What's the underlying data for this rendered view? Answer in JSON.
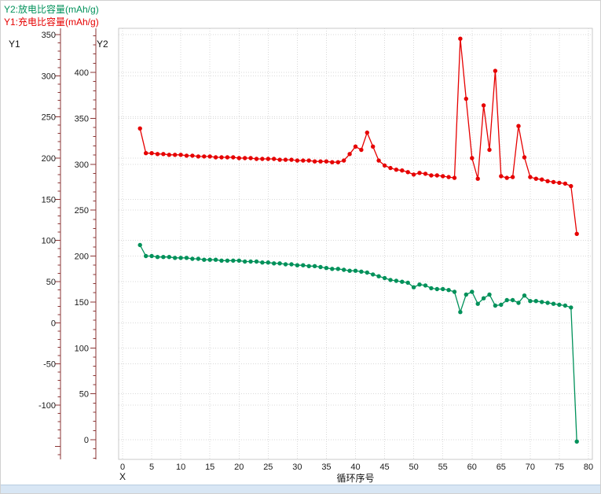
{
  "legend": {
    "y2_label": "Y2:放电比容量(mAh/g)",
    "y1_label": "Y1:充电比容量(mAh/g)"
  },
  "axes": {
    "y1_title": "Y1",
    "y2_title": "Y2",
    "x_title": "X",
    "x_axis_label": "循环序号"
  },
  "colors": {
    "charge": "#e60000",
    "discharge": "#00915a",
    "axis": "#8b3535",
    "grid": "#d9d9d9",
    "tick_text": "#1a1a1a",
    "plot_border": "#c9c9c9",
    "scrollbar": "#d8e6f4"
  },
  "chart_data": {
    "type": "line",
    "x_label": "循环序号",
    "y1_label": "充电比容量(mAh/g)",
    "y2_label": "放电比容量(mAh/g)",
    "x_ticks": [
      0,
      5,
      10,
      15,
      20,
      25,
      30,
      35,
      40,
      45,
      50,
      55,
      60,
      65,
      70,
      75,
      80
    ],
    "y1_ticks": [
      350,
      300,
      250,
      200,
      150,
      100,
      50,
      0,
      -50,
      -100
    ],
    "y2_ticks": [
      400,
      350,
      300,
      250,
      200,
      150,
      100,
      50,
      0
    ],
    "x": [
      3,
      4,
      5,
      6,
      7,
      8,
      9,
      10,
      11,
      12,
      13,
      14,
      15,
      16,
      17,
      18,
      19,
      20,
      21,
      22,
      23,
      24,
      25,
      26,
      27,
      28,
      29,
      30,
      31,
      32,
      33,
      34,
      35,
      36,
      37,
      38,
      39,
      40,
      41,
      42,
      43,
      44,
      45,
      46,
      47,
      48,
      49,
      50,
      51,
      52,
      53,
      54,
      55,
      56,
      57,
      58,
      59,
      60,
      61,
      62,
      63,
      64,
      65,
      66,
      67,
      68,
      69,
      70,
      71,
      72,
      73,
      74,
      75,
      76,
      77,
      78
    ],
    "series": [
      {
        "name": "充电比容量(mAh/g)",
        "axis": "Y1",
        "color": "#e60000",
        "values": [
          236,
          206,
          206,
          205,
          205,
          204,
          204,
          204,
          203,
          203,
          202,
          202,
          202,
          201,
          201,
          201,
          201,
          200,
          200,
          200,
          199,
          199,
          199,
          199,
          198,
          198,
          198,
          197,
          197,
          197,
          196,
          196,
          196,
          195,
          195,
          197,
          205,
          214,
          210,
          231,
          214,
          197,
          191,
          188,
          186,
          185,
          183,
          180,
          182,
          181,
          179,
          179,
          178,
          177,
          176,
          345,
          272,
          200,
          175,
          264,
          210,
          306,
          178,
          176,
          177,
          239,
          201,
          177,
          175,
          174,
          172,
          171,
          170,
          169,
          166,
          108
        ]
      },
      {
        "name": "放电比容量(mAh/g)",
        "axis": "Y2",
        "color": "#00915a",
        "values": [
          212,
          200,
          200,
          199,
          199,
          199,
          198,
          198,
          198,
          197,
          197,
          196,
          196,
          196,
          195,
          195,
          195,
          195,
          194,
          194,
          194,
          193,
          193,
          192,
          192,
          191,
          191,
          190,
          190,
          189,
          189,
          188,
          187,
          186,
          186,
          185,
          184,
          184,
          183,
          182,
          180,
          178,
          176,
          174,
          173,
          172,
          171,
          166,
          169,
          168,
          165,
          164,
          164,
          163,
          161,
          139,
          158,
          161,
          148,
          154,
          158,
          146,
          147,
          152,
          152,
          149,
          157,
          151,
          151,
          150,
          149,
          148,
          147,
          146,
          144,
          -2
        ]
      }
    ]
  }
}
